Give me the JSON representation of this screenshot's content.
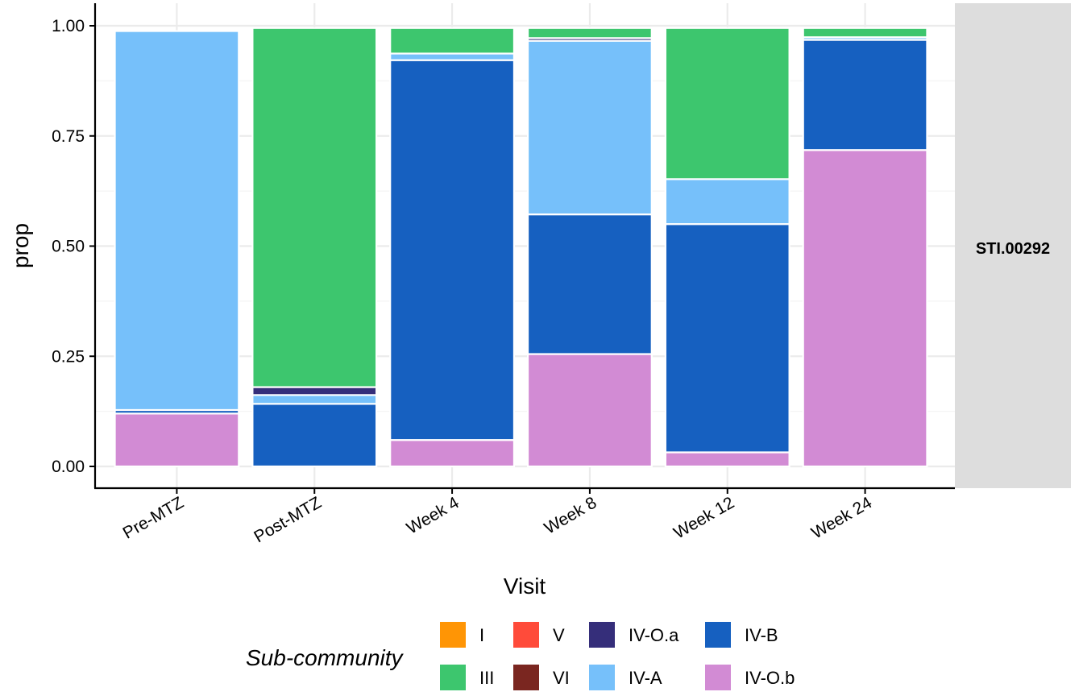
{
  "chart_data": {
    "type": "bar",
    "stacked": true,
    "facet_label": "STI.00292",
    "xlabel": "Visit",
    "ylabel": "prop",
    "ylim": [
      0,
      1
    ],
    "yticks": [
      0,
      0.25,
      0.5,
      0.75,
      1
    ],
    "ytick_labels": [
      "0.00",
      "0.25",
      "0.50",
      "0.75",
      "1.00"
    ],
    "grid": true,
    "categories": [
      "Pre-MTZ",
      "Post-MTZ",
      "Week 4",
      "Week 8",
      "Week 12",
      "Week 24"
    ],
    "stack_order": [
      "IV-O.b",
      "IV-B",
      "IV-A",
      "IV-O.a",
      "III"
    ],
    "series": [
      {
        "name": "IV-O.b",
        "color": "#D28BD4",
        "values": [
          0.12,
          0.0,
          0.06,
          0.255,
          0.032,
          0.718
        ]
      },
      {
        "name": "IV-B",
        "color": "#1660C0",
        "values": [
          0.008,
          0.142,
          0.862,
          0.317,
          0.518,
          0.25
        ]
      },
      {
        "name": "IV-A",
        "color": "#76C0FA",
        "values": [
          0.86,
          0.02,
          0.015,
          0.394,
          0.102,
          0.006
        ]
      },
      {
        "name": "IV-O.a",
        "color": "#352E7A",
        "values": [
          0.0,
          0.018,
          0.0,
          0.006,
          0.0,
          0.0
        ]
      },
      {
        "name": "III",
        "color": "#3DC66E",
        "values": [
          0.0,
          0.815,
          0.058,
          0.023,
          0.343,
          0.021
        ]
      }
    ],
    "legend": {
      "title": "Sub-community",
      "position": "bottom",
      "entries": [
        {
          "label": "I",
          "color": "#FF9505"
        },
        {
          "label": "III",
          "color": "#3DC66E"
        },
        {
          "label": "V",
          "color": "#FF4B3A"
        },
        {
          "label": "VI",
          "color": "#7A2620"
        },
        {
          "label": "IV-O.a",
          "color": "#352E7A"
        },
        {
          "label": "IV-A",
          "color": "#76C0FA"
        },
        {
          "label": "IV-B",
          "color": "#1660C0"
        },
        {
          "label": "IV-O.b",
          "color": "#D28BD4"
        }
      ]
    }
  }
}
